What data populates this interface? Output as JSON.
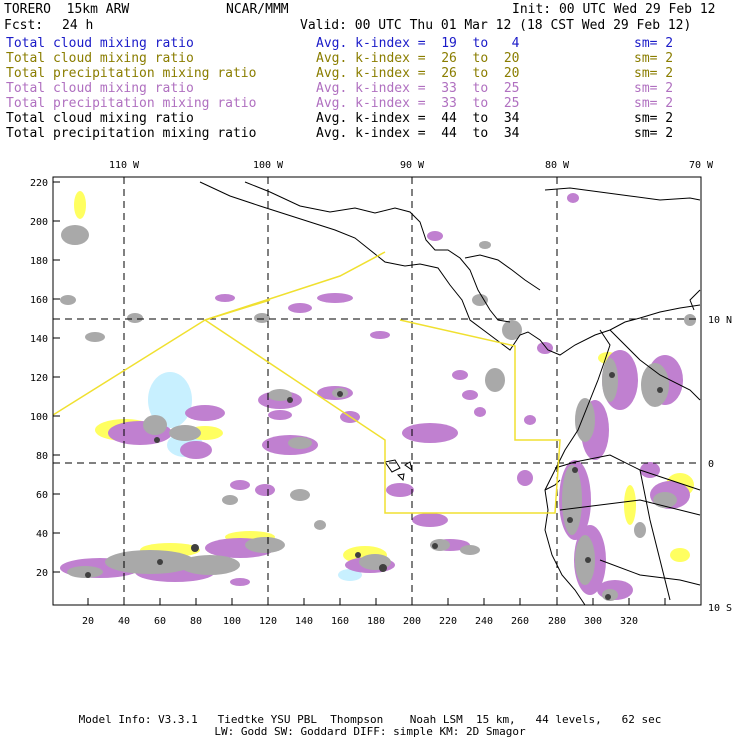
{
  "header": {
    "model": "TORERO  15km ARW",
    "org": "NCAR/MMM",
    "init": "Init: 00 UTC Wed 29 Feb 12",
    "fcst_label": "Fcst:",
    "fcst_value": "24 h",
    "valid": "Valid: 00 UTC Thu 01 Mar 12 (18 CST Wed 29 Feb 12)"
  },
  "legend": [
    {
      "field": "Total cloud mixing ratio",
      "index": "Avg. k-index =  19  to   4",
      "sm": "sm= 2",
      "color": "#1a1ac8"
    },
    {
      "field": "Total cloud mixing ratio",
      "index": "Avg. k-index =  26  to  20",
      "sm": "sm= 2",
      "color": "#8a7d00"
    },
    {
      "field": "Total precipitation mixing ratio",
      "index": "Avg. k-index =  26  to  20",
      "sm": "sm= 2",
      "color": "#8a7d00"
    },
    {
      "field": "Total cloud mixing ratio",
      "index": "Avg. k-index =  33  to  25",
      "sm": "sm= 2",
      "color": "#b070c0"
    },
    {
      "field": "Total precipitation mixing ratio",
      "index": "Avg. k-index =  33  to  25",
      "sm": "sm= 2",
      "color": "#b070c0"
    },
    {
      "field": "Total cloud mixing ratio",
      "index": "Avg. k-index =  44  to  34",
      "sm": "sm= 2",
      "color": "#000000"
    },
    {
      "field": "Total precipitation mixing ratio",
      "index": "Avg. k-index =  44  to  34",
      "sm": "sm= 2",
      "color": "#000000"
    }
  ],
  "map": {
    "lon_labels": [
      "110 W",
      "100 W",
      "90 W",
      "80 W",
      "70 W"
    ],
    "lat_labels": [
      "10 N",
      "0",
      "10 S"
    ],
    "y_ticks": [
      "220",
      "200",
      "180",
      "160",
      "140",
      "120",
      "100",
      "80",
      "60",
      "40",
      "20"
    ],
    "x_ticks": [
      "20",
      "40",
      "60",
      "80",
      "100",
      "120",
      "140",
      "160",
      "180",
      "200",
      "220",
      "240",
      "260",
      "280",
      "300",
      "320"
    ],
    "colors": {
      "grey": "#a9a9a9",
      "dark_grey": "#505050",
      "purple": "#c080d0",
      "yellow": "#ffff60",
      "light_blue": "#c8f0ff",
      "boundary": "#f0e030"
    }
  },
  "footer": {
    "line1": "Model Info: V3.3.1   Tiedtke YSU PBL  Thompson    Noah LSM  15 km,   44 levels,   62 sec",
    "line2": "LW: Godd SW: Goddard DIFF: simple KM: 2D Smagor"
  }
}
